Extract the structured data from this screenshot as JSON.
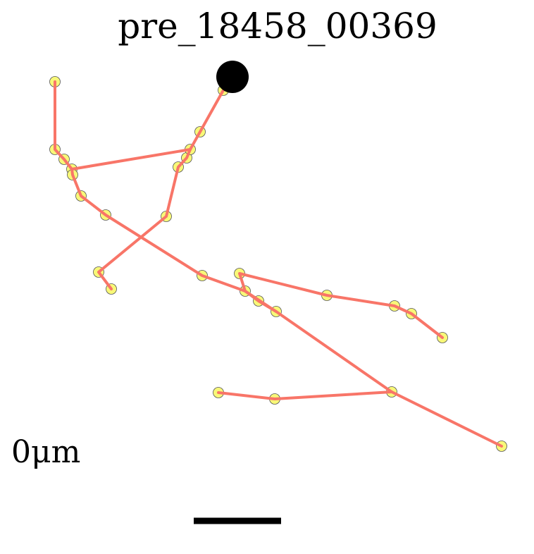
{
  "title": "pre_18458_00369",
  "scale_label": "0μm",
  "colors": {
    "branch": "#f87568",
    "node_fill": "#f8f878",
    "node_stroke": "#555555",
    "soma": "#000000",
    "scale_bar": "#000000"
  },
  "legend_icons": {
    "soma": "filled-circle",
    "node": "small-circle"
  }
}
